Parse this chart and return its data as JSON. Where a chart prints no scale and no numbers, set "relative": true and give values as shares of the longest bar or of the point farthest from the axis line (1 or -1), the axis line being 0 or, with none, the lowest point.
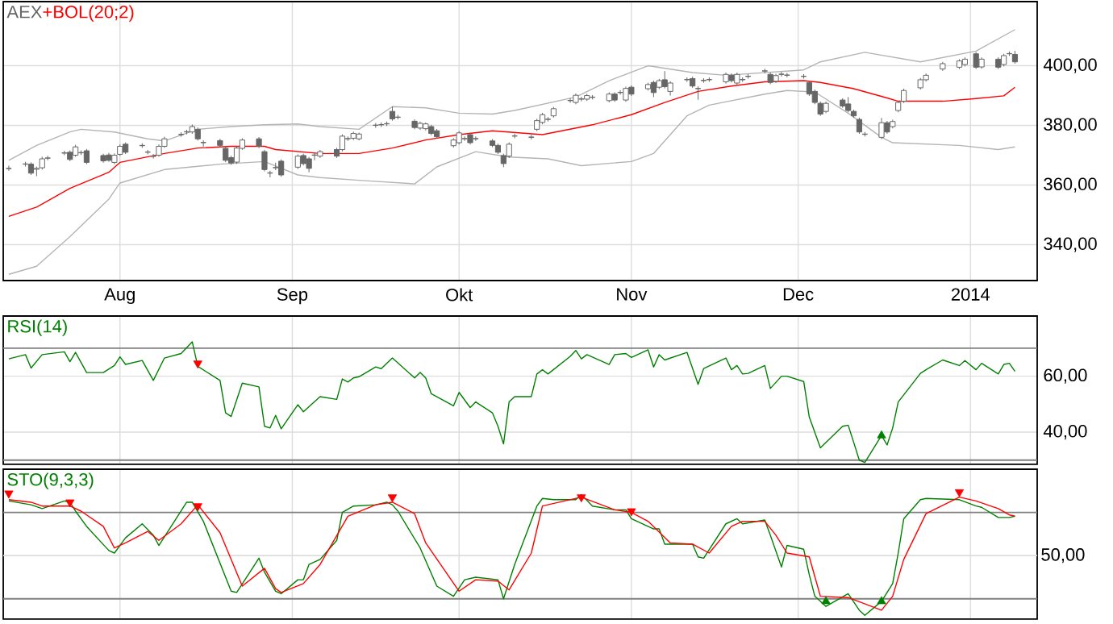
{
  "chart_data": [
    {
      "type": "candlestick",
      "legend": "top left",
      "grid": true,
      "xlim": [
        "2013-07-11",
        "2014-01-13"
      ],
      "ylim": [
        328,
        421.5
      ],
      "xticks": [
        {
          "value": "2013-08-01",
          "label": "Aug"
        },
        {
          "value": "2013-09-01",
          "label": "Sep"
        },
        {
          "value": "2013-10-01",
          "label": "Okt"
        },
        {
          "value": "2013-11-01",
          "label": "Nov"
        },
        {
          "value": "2013-12-01",
          "label": "Dec"
        },
        {
          "value": "2014-01-01",
          "label": "2014"
        }
      ],
      "yticks": [
        {
          "value": 340,
          "label": "340,00"
        },
        {
          "value": 360,
          "label": "360,00"
        },
        {
          "value": 380,
          "label": "380,00"
        },
        {
          "value": 400,
          "label": "400,00"
        }
      ],
      "series": [
        {
          "type": "line",
          "name": "+BOL(20;2)",
          "color": "#ff0000",
          "x": [
            "2013-07-12",
            "2013-07-17",
            "2013-07-23",
            "2013-07-30",
            "2013-08-01",
            "2013-08-09",
            "2013-08-15",
            "2013-08-21",
            "2013-08-27",
            "2013-08-29",
            "2013-09-06",
            "2013-09-13",
            "2013-09-19",
            "2013-09-25",
            "2013-10-01",
            "2013-10-07",
            "2013-10-16",
            "2013-10-25",
            "2013-11-01",
            "2013-11-07",
            "2013-11-13",
            "2013-11-19",
            "2013-11-25",
            "2013-12-02",
            "2013-12-05",
            "2013-12-11",
            "2013-12-17",
            "2013-12-19",
            "2013-12-27",
            "2014-01-02",
            "2014-01-07",
            "2014-01-09"
          ],
          "values": [
            349.5,
            352.6,
            358.9,
            364.3,
            367.6,
            370.6,
            372.4,
            373,
            373,
            371.9,
            370.6,
            370.6,
            372.4,
            375.1,
            376.9,
            378.2,
            376.9,
            380.2,
            383.6,
            387.7,
            391.4,
            393.2,
            394.6,
            395,
            394.4,
            392.3,
            389.2,
            388.1,
            388.1,
            389,
            389.9,
            392.8
          ]
        },
        {
          "type": "line",
          "color": "#b4b4b4",
          "x": [
            "2013-07-12",
            "2013-07-17",
            "2013-07-23",
            "2013-07-25",
            "2013-07-31",
            "2013-08-06",
            "2013-08-09",
            "2013-08-15",
            "2013-08-21",
            "2013-08-27",
            "2013-09-02",
            "2013-09-06",
            "2013-09-13",
            "2013-09-19",
            "2013-09-25",
            "2013-10-01",
            "2013-10-07",
            "2013-10-11",
            "2013-10-22",
            "2013-10-28",
            "2013-11-04",
            "2013-11-12",
            "2013-11-18",
            "2013-11-25",
            "2013-12-02",
            "2013-12-05",
            "2013-12-13",
            "2013-12-23",
            "2014-01-02",
            "2014-01-09"
          ],
          "values": [
            368.3,
            373.3,
            377.8,
            378.7,
            377.8,
            375.5,
            374.8,
            378.7,
            379.6,
            380.2,
            380.5,
            379.6,
            378.7,
            386.3,
            385.9,
            384.1,
            383.8,
            385,
            389.5,
            395,
            400,
            397.7,
            396.8,
            397.7,
            398.6,
            401.3,
            404.5,
            401.3,
            404.9,
            412.1
          ]
        },
        {
          "type": "line",
          "color": "#b4b4b4",
          "x": [
            "2013-07-12",
            "2013-07-17",
            "2013-07-23",
            "2013-07-30",
            "2013-08-01",
            "2013-08-09",
            "2013-08-19",
            "2013-08-27",
            "2013-09-02",
            "2013-09-06",
            "2013-09-13",
            "2013-09-23",
            "2013-09-27",
            "2013-10-04",
            "2013-10-10",
            "2013-10-17",
            "2013-10-23",
            "2013-11-01",
            "2013-11-05",
            "2013-11-11",
            "2013-11-15",
            "2013-11-25",
            "2013-11-29",
            "2013-12-04",
            "2013-12-10",
            "2013-12-16",
            "2013-12-18",
            "2013-12-30",
            "2014-01-06",
            "2014-01-09"
          ],
          "values": [
            330.1,
            332.8,
            342.7,
            355.3,
            360.7,
            365.2,
            367,
            367.9,
            363.4,
            362.5,
            361.6,
            360.4,
            366.1,
            371.2,
            369.4,
            368.8,
            366.5,
            367.9,
            370.6,
            383.2,
            386.8,
            390.5,
            391.7,
            391.2,
            384.1,
            376,
            374.2,
            373.3,
            371.9,
            372.8
          ]
        },
        {
          "type": "candlestick",
          "name": "AEX",
          "color": "#666666",
          "x": [
            "2013-07-12",
            "2013-07-15",
            "2013-07-16",
            "2013-07-17",
            "2013-07-18",
            "2013-07-19",
            "2013-07-22",
            "2013-07-23",
            "2013-07-24",
            "2013-07-25",
            "2013-07-26",
            "2013-07-29",
            "2013-07-30",
            "2013-07-31",
            "2013-08-01",
            "2013-08-02",
            "2013-08-05",
            "2013-08-06",
            "2013-08-07",
            "2013-08-08",
            "2013-08-09",
            "2013-08-12",
            "2013-08-13",
            "2013-08-14",
            "2013-08-15",
            "2013-08-16",
            "2013-08-19",
            "2013-08-20",
            "2013-08-21",
            "2013-08-22",
            "2013-08-23",
            "2013-08-26",
            "2013-08-27",
            "2013-08-28",
            "2013-08-29",
            "2013-08-30",
            "2013-09-02",
            "2013-09-03",
            "2013-09-04",
            "2013-09-05",
            "2013-09-06",
            "2013-09-09",
            "2013-09-10",
            "2013-09-11",
            "2013-09-12",
            "2013-09-13",
            "2013-09-16",
            "2013-09-17",
            "2013-09-18",
            "2013-09-19",
            "2013-09-20",
            "2013-09-23",
            "2013-09-24",
            "2013-09-25",
            "2013-09-26",
            "2013-09-27",
            "2013-09-30",
            "2013-10-01",
            "2013-10-02",
            "2013-10-03",
            "2013-10-04",
            "2013-10-07",
            "2013-10-08",
            "2013-10-09",
            "2013-10-10",
            "2013-10-11",
            "2013-10-14",
            "2013-10-15",
            "2013-10-16",
            "2013-10-17",
            "2013-10-18",
            "2013-10-21",
            "2013-10-22",
            "2013-10-23",
            "2013-10-24",
            "2013-10-25",
            "2013-10-28",
            "2013-10-29",
            "2013-10-30",
            "2013-10-31",
            "2013-11-01",
            "2013-11-04",
            "2013-11-05",
            "2013-11-06",
            "2013-11-07",
            "2013-11-08",
            "2013-11-11",
            "2013-11-12",
            "2013-11-13",
            "2013-11-14",
            "2013-11-15",
            "2013-11-18",
            "2013-11-19",
            "2013-11-20",
            "2013-11-21",
            "2013-11-22",
            "2013-11-25",
            "2013-11-26",
            "2013-11-27",
            "2013-11-28",
            "2013-11-29",
            "2013-12-02",
            "2013-12-03",
            "2013-12-04",
            "2013-12-05",
            "2013-12-06",
            "2013-12-09",
            "2013-12-10",
            "2013-12-11",
            "2013-12-12",
            "2013-12-13",
            "2013-12-16",
            "2013-12-17",
            "2013-12-18",
            "2013-12-19",
            "2013-12-20",
            "2013-12-23",
            "2013-12-24",
            "2013-12-27",
            "2013-12-30",
            "2013-12-31",
            "2014-01-02",
            "2014-01-03",
            "2014-01-06",
            "2014-01-07",
            "2014-01-08",
            "2014-01-09"
          ],
          "ohlc": [
            [
              365.5,
              366.5,
              364.8,
              365.6
            ],
            [
              367.0,
              367.8,
              366.2,
              367.1
            ],
            [
              367.0,
              367.6,
              363.4,
              364.0
            ],
            [
              365.3,
              366.2,
              363.0,
              365.6
            ],
            [
              365.8,
              369.5,
              365.2,
              368.8
            ],
            [
              369.0,
              369.8,
              368.3,
              369.1
            ],
            [
              370.7,
              371.5,
              370.0,
              370.8
            ],
            [
              371.0,
              371.6,
              368.0,
              368.6
            ],
            [
              370.0,
              373.5,
              369.5,
              372.8
            ],
            [
              370.8,
              371.6,
              370.1,
              370.9
            ],
            [
              371.5,
              372.1,
              367.0,
              367.6
            ],
            [
              369.9,
              370.5,
              367.5,
              368.1
            ],
            [
              370.1,
              370.8,
              367.8,
              368.3
            ],
            [
              367.6,
              370.6,
              367.0,
              370.0
            ],
            [
              370.3,
              373.6,
              369.8,
              373.0
            ],
            [
              373.7,
              374.3,
              370.4,
              371.0
            ],
            [
              373.2,
              374.0,
              372.5,
              373.3
            ],
            [
              371.0,
              371.8,
              370.3,
              371.1
            ],
            [
              369.6,
              370.4,
              368.9,
              369.7
            ],
            [
              370.0,
              373.6,
              369.5,
              373.0
            ],
            [
              373.0,
              376.2,
              372.5,
              375.5
            ],
            [
              376.9,
              377.7,
              376.2,
              377.0
            ],
            [
              377.8,
              378.5,
              377.0,
              377.9
            ],
            [
              377.8,
              380.3,
              377.2,
              379.6
            ],
            [
              378.7,
              379.3,
              374.9,
              375.5
            ],
            [
              374.2,
              375.0,
              372.9,
              374.3
            ],
            [
              374.9,
              375.5,
              372.7,
              373.3
            ],
            [
              372.3,
              372.9,
              367.7,
              368.3
            ],
            [
              369.2,
              369.8,
              366.8,
              367.4
            ],
            [
              367.7,
              373.0,
              367.1,
              372.4
            ],
            [
              372.3,
              375.7,
              371.8,
              375.1
            ],
            [
              375.5,
              376.1,
              372.4,
              373.0
            ],
            [
              371.2,
              371.8,
              364.6,
              365.2
            ],
            [
              364.0,
              364.8,
              362.6,
              364.1
            ],
            [
              365.8,
              367.5,
              365.0,
              365.9
            ],
            [
              368.0,
              368.6,
              362.8,
              363.4
            ],
            [
              366.0,
              370.3,
              365.4,
              369.7
            ],
            [
              369.9,
              370.5,
              366.6,
              367.2
            ],
            [
              368.8,
              369.4,
              364.3,
              365.6
            ],
            [
              370.0,
              371.0,
              368.3,
              370.1
            ],
            [
              369.7,
              371.8,
              369.1,
              371.2
            ],
            [
              371.9,
              372.5,
              369.1,
              369.7
            ],
            [
              371.9,
              377.0,
              371.3,
              376.4
            ],
            [
              375.5,
              376.3,
              374.8,
              375.6
            ],
            [
              375.7,
              377.9,
              375.1,
              377.3
            ],
            [
              375.5,
              377.6,
              375.0,
              377.1
            ],
            [
              380.0,
              380.8,
              379.2,
              380.1
            ],
            [
              380.2,
              381.0,
              379.5,
              380.3
            ],
            [
              380.5,
              381.3,
              379.8,
              380.6
            ],
            [
              384.7,
              386.3,
              381.6,
              382.2
            ],
            [
              382.7,
              383.5,
              382.0,
              382.8
            ],
            [
              381.4,
              382.0,
              378.7,
              379.3
            ],
            [
              379.1,
              381.3,
              378.5,
              380.7
            ],
            [
              378.9,
              381.0,
              378.3,
              380.5
            ],
            [
              379.6,
              380.2,
              376.7,
              377.3
            ],
            [
              378.2,
              378.8,
              375.6,
              376.2
            ],
            [
              373.2,
              375.7,
              372.6,
              375.1
            ],
            [
              374.2,
              378.1,
              373.6,
              377.5
            ],
            [
              375.5,
              376.3,
              374.8,
              375.6
            ],
            [
              376.9,
              377.5,
              373.6,
              374.2
            ],
            [
              375.5,
              376.3,
              374.8,
              375.6
            ],
            [
              374.8,
              375.4,
              372.7,
              373.3
            ],
            [
              373.3,
              373.9,
              370.4,
              371.0
            ],
            [
              369.9,
              370.5,
              366.0,
              367.2
            ],
            [
              369.7,
              374.3,
              369.1,
              373.7
            ],
            [
              376.4,
              377.2,
              375.7,
              376.5
            ],
            [
              376.0,
              376.8,
              375.3,
              376.1
            ],
            [
              378.7,
              382.2,
              378.1,
              381.6
            ],
            [
              381.0,
              384.2,
              380.4,
              383.6
            ],
            [
              382.0,
              382.8,
              381.3,
              382.1
            ],
            [
              383.2,
              386.2,
              382.6,
              385.6
            ],
            [
              388.3,
              389.1,
              387.6,
              388.4
            ],
            [
              387.7,
              390.7,
              387.1,
              390.1
            ],
            [
              388.8,
              389.6,
              388.1,
              388.9
            ],
            [
              388.8,
              390.6,
              388.2,
              390.0
            ],
            [
              389.4,
              390.2,
              388.7,
              389.5
            ],
            [
              388.3,
              391.1,
              387.7,
              390.5
            ],
            [
              390.5,
              391.1,
              387.9,
              388.5
            ],
            [
              391.0,
              391.8,
              390.3,
              391.1
            ],
            [
              388.5,
              393.0,
              387.9,
              392.4
            ],
            [
              392.8,
              393.4,
              389.9,
              390.5
            ],
            [
              392.3,
              394.3,
              391.7,
              393.7
            ],
            [
              394.4,
              395.0,
              389.5,
              391.0
            ],
            [
              392.8,
              395.6,
              392.2,
              395.0
            ],
            [
              395.3,
              398.2,
              392.4,
              393.0
            ],
            [
              391.4,
              394.8,
              390.0,
              394.2
            ],
            [
              395.3,
              396.1,
              394.6,
              395.4
            ],
            [
              395.7,
              396.3,
              392.6,
              393.2
            ],
            [
              392.3,
              393.1,
              388.6,
              392.4
            ],
            [
              395.0,
              395.8,
              394.3,
              395.1
            ],
            [
              395.3,
              396.1,
              394.6,
              395.4
            ],
            [
              394.6,
              397.7,
              394.0,
              397.1
            ],
            [
              396.8,
              397.4,
              394.4,
              395.0
            ],
            [
              394.2,
              397.7,
              393.6,
              397.1
            ],
            [
              395.3,
              396.1,
              394.6,
              395.4
            ],
            [
              396.4,
              397.2,
              395.7,
              396.5
            ],
            [
              398.2,
              399.0,
              397.5,
              398.3
            ],
            [
              397.1,
              397.7,
              393.8,
              394.4
            ],
            [
              394.8,
              397.3,
              394.2,
              396.7
            ],
            [
              397.1,
              397.9,
              396.4,
              397.2
            ],
            [
              396.8,
              397.6,
              396.1,
              396.9
            ],
            [
              396.4,
              397.2,
              395.7,
              396.5
            ],
            [
              394.4,
              395.0,
              389.9,
              390.5
            ],
            [
              391.4,
              392.0,
              387.1,
              387.7
            ],
            [
              387.4,
              388.0,
              383.2,
              383.8
            ],
            [
              384.7,
              388.0,
              384.1,
              387.4
            ],
            [
              388.5,
              389.1,
              385.9,
              386.5
            ],
            [
              387.2,
              389.5,
              384.4,
              385.0
            ],
            [
              384.7,
              385.3,
              382.6,
              383.2
            ],
            [
              382.0,
              382.6,
              377.2,
              377.8
            ],
            [
              377.0,
              377.8,
              376.3,
              377.1
            ],
            [
              376.0,
              382.5,
              375.4,
              380.9
            ],
            [
              380.9,
              381.5,
              377.2,
              377.8
            ],
            [
              379.6,
              381.9,
              379.0,
              381.3
            ],
            [
              385.0,
              388.3,
              384.4,
              387.7
            ],
            [
              388.1,
              392.3,
              387.5,
              391.7
            ],
            [
              392.6,
              395.9,
              392.0,
              395.3
            ],
            [
              395.3,
              397.4,
              394.7,
              396.8
            ],
            [
              398.9,
              401.3,
              398.3,
              400.7
            ],
            [
              399.5,
              402.2,
              398.9,
              401.6
            ],
            [
              400.4,
              402.8,
              399.8,
              402.2
            ],
            [
              404.0,
              404.6,
              398.9,
              399.5
            ],
            [
              399.6,
              402.8,
              399.0,
              402.2
            ],
            [
              402.2,
              402.8,
              398.9,
              399.5
            ],
            [
              400.4,
              404.0,
              399.8,
              403.4
            ],
            [
              404.0,
              404.8,
              403.3,
              404.1
            ],
            [
              403.8,
              405.0,
              400.7,
              401.3
            ]
          ]
        }
      ]
    },
    {
      "type": "line",
      "legend": "top left",
      "grid": true,
      "tick_labels": "y",
      "xlim": [
        "2013-07-11",
        "2014-01-13"
      ],
      "ylim": [
        28.5,
        81.5
      ],
      "xticks": [
        {
          "value": "2013-08-01",
          "label": null
        },
        {
          "value": "2013-09-01",
          "label": null
        },
        {
          "value": "2013-10-01",
          "label": null
        },
        {
          "value": "2013-11-01",
          "label": null
        },
        {
          "value": "2013-12-01",
          "label": null
        },
        {
          "value": "2014-01-01",
          "label": null
        }
      ],
      "yticks": [
        {
          "value": 40,
          "label": "40,00"
        },
        {
          "value": 60,
          "label": "60,00"
        }
      ],
      "ref_lines": [
        {
          "axis": "y",
          "value": 70,
          "color": "#808080"
        },
        {
          "axis": "y",
          "value": 30,
          "color": "#808080"
        }
      ],
      "series": [
        {
          "name": "RSI(14)",
          "color": "#008000",
          "x": [
            "2013-07-12",
            "2013-07-15",
            "2013-07-16",
            "2013-07-18",
            "2013-07-22",
            "2013-07-23",
            "2013-07-24",
            "2013-07-26",
            "2013-07-29",
            "2013-07-31",
            "2013-08-01",
            "2013-08-02",
            "2013-08-05",
            "2013-08-07",
            "2013-08-09",
            "2013-08-12",
            "2013-08-14",
            "2013-08-15",
            "2013-08-19",
            "2013-08-20",
            "2013-08-21",
            "2013-08-23",
            "2013-08-26",
            "2013-08-27",
            "2013-08-28",
            "2013-08-29",
            "2013-08-30",
            "2013-09-02",
            "2013-09-03",
            "2013-09-06",
            "2013-09-09",
            "2013-09-10",
            "2013-09-11",
            "2013-09-12",
            "2013-09-13",
            "2013-09-16",
            "2013-09-17",
            "2013-09-19",
            "2013-09-23",
            "2013-09-24",
            "2013-09-25",
            "2013-09-26",
            "2013-09-30",
            "2013-10-01",
            "2013-10-03",
            "2013-10-04",
            "2013-10-07",
            "2013-10-08",
            "2013-10-09",
            "2013-10-10",
            "2013-10-11",
            "2013-10-14",
            "2013-10-15",
            "2013-10-16",
            "2013-10-17",
            "2013-10-21",
            "2013-10-22",
            "2013-10-23",
            "2013-10-24",
            "2013-10-28",
            "2013-10-29",
            "2013-10-31",
            "2013-11-01",
            "2013-11-04",
            "2013-11-05",
            "2013-11-06",
            "2013-11-07",
            "2013-11-11",
            "2013-11-13",
            "2013-11-14",
            "2013-11-18",
            "2013-11-19",
            "2013-11-20",
            "2013-11-21",
            "2013-11-22",
            "2013-11-25",
            "2013-11-26",
            "2013-11-28",
            "2013-11-29",
            "2013-12-02",
            "2013-12-03",
            "2013-12-05",
            "2013-12-09",
            "2013-12-10",
            "2013-12-11",
            "2013-12-12",
            "2013-12-13",
            "2013-12-16",
            "2013-12-17",
            "2013-12-18",
            "2013-12-19",
            "2013-12-23",
            "2013-12-24",
            "2013-12-27",
            "2013-12-30",
            "2013-12-31",
            "2014-01-02",
            "2014-01-03",
            "2014-01-06",
            "2014-01-07",
            "2014-01-08",
            "2014-01-09"
          ],
          "values": [
            66.2,
            67.7,
            62.9,
            67.7,
            68.7,
            65.2,
            68.5,
            61.3,
            61.3,
            63.8,
            66.9,
            64.2,
            65.6,
            58.5,
            66.5,
            68.1,
            72.3,
            63.5,
            58.5,
            46.9,
            45.6,
            57.5,
            56.2,
            42.1,
            41.5,
            46,
            41.2,
            49.8,
            47.3,
            52.7,
            51.7,
            59,
            57.9,
            59.4,
            59.8,
            63.3,
            62.7,
            66.5,
            59.4,
            61.3,
            59.4,
            53.7,
            49.4,
            54.2,
            48.8,
            50.8,
            46.9,
            42.1,
            35.8,
            50.8,
            52.7,
            52.7,
            60.8,
            62.3,
            60.8,
            67.1,
            69.2,
            66.2,
            67.7,
            64.2,
            67.7,
            68.1,
            66.7,
            69.4,
            63.3,
            67.7,
            65.8,
            68.5,
            57.1,
            62.7,
            66.5,
            62.3,
            63.8,
            60.8,
            61,
            63.8,
            55.6,
            60,
            60,
            58.1,
            45.4,
            34.4,
            42.1,
            42.5,
            36.3,
            30,
            29.2,
            38.8,
            35.4,
            41.5,
            50.8,
            61,
            62.3,
            65.8,
            63.8,
            65.6,
            62.3,
            64.6,
            60.8,
            64.2,
            64.6,
            61.7
          ]
        },
        {
          "type": "scatter",
          "marker": "triangle",
          "color": "#ff0000",
          "x": [
            "2013-08-15"
          ],
          "values": [
            64.6
          ]
        },
        {
          "type": "scatter",
          "marker": "triangle",
          "color": "#008000",
          "x": [
            "2013-12-16"
          ],
          "values": [
            38.8
          ]
        }
      ]
    },
    {
      "type": "line",
      "relative": true,
      "legend": "top left",
      "grid": "x",
      "tick_labels": false,
      "xlim": [
        "2013-07-11",
        "2014-01-13"
      ],
      "xticks": [
        {
          "value": "2013-08-01",
          "label": null
        },
        {
          "value": "2013-09-01",
          "label": null
        },
        {
          "value": "2013-10-01",
          "label": null
        },
        {
          "value": "2013-11-01",
          "label": null
        },
        {
          "value": "2013-12-01",
          "label": null
        },
        {
          "value": "2014-01-01",
          "label": null
        }
      ],
      "ref_lines": [
        {
          "axis": "y",
          "value": 0.84,
          "color": "#808080"
        },
        {
          "axis": "y",
          "value": 0.16,
          "color": "#808080"
        },
        {
          "axis": "y",
          "value": 0.5,
          "color": "#dddddd",
          "label": "50,00"
        }
      ],
      "series": [
        {
          "name": "STO(9,3,3)",
          "color": "#008000",
          "x": [
            "2013-07-12",
            "2013-07-16",
            "2013-07-18",
            "2013-07-22",
            "2013-07-23",
            "2013-07-24",
            "2013-07-26",
            "2013-07-30",
            "2013-07-31",
            "2013-08-02",
            "2013-08-05",
            "2013-08-07",
            "2013-08-08",
            "2013-08-13",
            "2013-08-14",
            "2013-08-16",
            "2013-08-21",
            "2013-08-22",
            "2013-08-26",
            "2013-08-27",
            "2013-08-29",
            "2013-08-30",
            "2013-09-02",
            "2013-09-03",
            "2013-09-04",
            "2013-09-06",
            "2013-09-09",
            "2013-09-10",
            "2013-09-12",
            "2013-09-16",
            "2013-09-18",
            "2013-09-19",
            "2013-09-20",
            "2013-09-24",
            "2013-09-27",
            "2013-09-30",
            "2013-10-02",
            "2013-10-04",
            "2013-10-08",
            "2013-10-09",
            "2013-10-11",
            "2013-10-15",
            "2013-10-16",
            "2013-10-18",
            "2013-10-22",
            "2013-10-23",
            "2013-10-25",
            "2013-10-29",
            "2013-10-31",
            "2013-11-01",
            "2013-11-05",
            "2013-11-06",
            "2013-11-07",
            "2013-11-12",
            "2013-11-13",
            "2013-11-14",
            "2013-11-18",
            "2013-11-20",
            "2013-11-21",
            "2013-11-25",
            "2013-11-26",
            "2013-11-28",
            "2013-11-29",
            "2013-12-02",
            "2013-12-03",
            "2013-12-04",
            "2013-12-06",
            "2013-12-10",
            "2013-12-12",
            "2013-12-13",
            "2013-12-16",
            "2013-12-18",
            "2013-12-19",
            "2013-12-20",
            "2013-12-23",
            "2013-12-24",
            "2013-12-30",
            "2014-01-02",
            "2014-01-03",
            "2014-01-06",
            "2014-01-08",
            "2014-01-09"
          ],
          "values": [
            0.93,
            0.9,
            0.87,
            0.93,
            0.92,
            0.85,
            0.73,
            0.54,
            0.52,
            0.64,
            0.75,
            0.66,
            0.58,
            0.92,
            0.92,
            0.77,
            0.22,
            0.21,
            0.48,
            0.37,
            0.22,
            0.2,
            0.31,
            0.31,
            0.43,
            0.47,
            0.62,
            0.84,
            0.89,
            0.9,
            0.92,
            0.9,
            0.85,
            0.56,
            0.26,
            0.18,
            0.31,
            0.33,
            0.31,
            0.16,
            0.43,
            0.89,
            0.95,
            0.94,
            0.94,
            0.98,
            0.89,
            0.86,
            0.86,
            0.79,
            0.71,
            0.71,
            0.59,
            0.59,
            0.49,
            0.48,
            0.75,
            0.79,
            0.75,
            0.78,
            0.66,
            0.41,
            0.58,
            0.55,
            0.35,
            0.18,
            0.1,
            0.2,
            0.07,
            0.03,
            0.14,
            0.28,
            0.52,
            0.79,
            0.94,
            0.95,
            0.94,
            0.89,
            0.88,
            0.8,
            0.8,
            0.81
          ]
        },
        {
          "color": "#ff0000",
          "x": [
            "2013-07-12",
            "2013-07-16",
            "2013-07-18",
            "2013-07-23",
            "2013-07-25",
            "2013-07-29",
            "2013-07-31",
            "2013-08-02",
            "2013-08-06",
            "2013-08-08",
            "2013-08-12",
            "2013-08-15",
            "2013-08-19",
            "2013-08-23",
            "2013-08-27",
            "2013-08-29",
            "2013-08-30",
            "2013-09-03",
            "2013-09-06",
            "2013-09-11",
            "2013-09-16",
            "2013-09-19",
            "2013-09-23",
            "2013-09-25",
            "2013-10-01",
            "2013-10-04",
            "2013-10-08",
            "2013-10-10",
            "2013-10-14",
            "2013-10-16",
            "2013-10-23",
            "2013-10-29",
            "2013-11-01",
            "2013-11-04",
            "2013-11-08",
            "2013-11-12",
            "2013-11-15",
            "2013-11-19",
            "2013-11-21",
            "2013-11-25",
            "2013-11-27",
            "2013-11-29",
            "2013-12-03",
            "2013-12-05",
            "2013-12-10",
            "2013-12-16",
            "2013-12-18",
            "2013-12-20",
            "2013-12-24",
            "2013-12-30",
            "2014-01-02",
            "2014-01-06",
            "2014-01-08",
            "2014-01-09"
          ],
          "values": [
            0.94,
            0.92,
            0.89,
            0.89,
            0.85,
            0.73,
            0.56,
            0.6,
            0.69,
            0.62,
            0.75,
            0.9,
            0.68,
            0.26,
            0.4,
            0.24,
            0.21,
            0.28,
            0.43,
            0.81,
            0.9,
            0.92,
            0.83,
            0.6,
            0.22,
            0.31,
            0.3,
            0.23,
            0.52,
            0.89,
            0.96,
            0.86,
            0.84,
            0.77,
            0.6,
            0.59,
            0.52,
            0.73,
            0.77,
            0.77,
            0.66,
            0.52,
            0.49,
            0.18,
            0.17,
            0.07,
            0.18,
            0.47,
            0.83,
            0.96,
            0.93,
            0.87,
            0.82,
            0.81
          ]
        },
        {
          "type": "scatter",
          "marker": "triangle",
          "color": "#ff0000",
          "x": [
            "2013-07-12",
            "2013-07-23",
            "2013-08-15",
            "2013-09-19",
            "2013-10-23",
            "2013-11-01",
            "2013-12-30"
          ],
          "values": [
            0.99,
            0.92,
            0.89,
            0.96,
            0.96,
            0.85,
            1.0
          ]
        },
        {
          "type": "scatter",
          "marker": "triangle",
          "color": "#008000",
          "x": [
            "2013-12-06",
            "2013-12-16"
          ],
          "values": [
            0.14,
            0.14
          ]
        }
      ]
    }
  ]
}
